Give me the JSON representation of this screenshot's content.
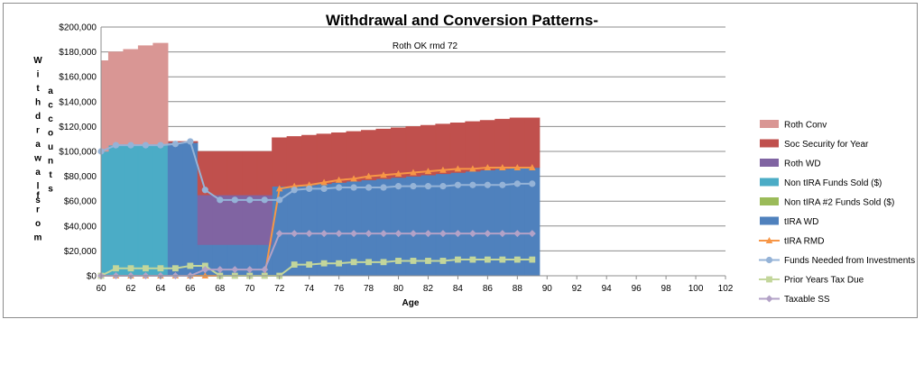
{
  "chart_data": {
    "type": "area",
    "title": "Withdrawal and Conversion Patterns-",
    "subtitle": "Roth OK rmd 72",
    "xlabel": "Age",
    "ylabel": "Withdrawals from accounts ($)",
    "ylim": [
      0,
      200000
    ],
    "xlim": [
      60,
      102
    ],
    "yticks": [
      0,
      20000,
      40000,
      60000,
      80000,
      100000,
      120000,
      140000,
      160000,
      180000,
      200000
    ],
    "ytick_labels": [
      "$0",
      "$20,000",
      "$40,000",
      "$60,000",
      "$80,000",
      "$100,000",
      "$120,000",
      "$140,000",
      "$160,000",
      "$180,000",
      "$200,000"
    ],
    "xticks": [
      60,
      62,
      64,
      66,
      68,
      70,
      72,
      74,
      76,
      78,
      80,
      82,
      84,
      86,
      88,
      90,
      92,
      94,
      96,
      98,
      100,
      102
    ],
    "grid": "horizontal",
    "legend_position": "right",
    "ages": [
      60,
      61,
      62,
      63,
      64,
      65,
      66,
      67,
      68,
      69,
      70,
      71,
      72,
      73,
      74,
      75,
      76,
      77,
      78,
      79,
      80,
      81,
      82,
      83,
      84,
      85,
      86,
      87,
      88,
      89
    ],
    "stacked_series": [
      {
        "name": "Non tIRA Funds Sold ($)",
        "color": "#4bacc6",
        "values": [
          100000,
          105000,
          105000,
          105000,
          105000,
          0,
          0,
          0,
          0,
          0,
          0,
          0,
          0,
          0,
          0,
          0,
          0,
          0,
          0,
          0,
          0,
          0,
          0,
          0,
          0,
          0,
          0,
          0,
          0,
          0
        ]
      },
      {
        "name": "tIRA WD",
        "color": "#4f81bd",
        "values": [
          0,
          0,
          0,
          0,
          0,
          107000,
          107000,
          25000,
          25000,
          25000,
          25000,
          25000,
          72000,
          72000,
          73000,
          74000,
          75000,
          76000,
          77000,
          78000,
          79000,
          80000,
          81000,
          82000,
          83000,
          84000,
          85000,
          86000,
          87000,
          87000
        ]
      },
      {
        "name": "Roth WD",
        "color": "#8064a2",
        "values": [
          0,
          0,
          0,
          0,
          0,
          0,
          0,
          40000,
          40000,
          40000,
          40000,
          40000,
          0,
          0,
          0,
          0,
          0,
          0,
          0,
          0,
          0,
          0,
          0,
          0,
          0,
          0,
          0,
          0,
          0,
          0
        ]
      },
      {
        "name": "Non tIRA #2 Funds Sold ($)",
        "color": "#9bbb59",
        "values": [
          0,
          0,
          0,
          0,
          0,
          0,
          0,
          0,
          0,
          0,
          0,
          0,
          0,
          0,
          0,
          0,
          0,
          0,
          0,
          0,
          0,
          0,
          0,
          0,
          0,
          0,
          0,
          0,
          0,
          0
        ]
      },
      {
        "name": "Soc Security for Year",
        "color": "#c0504d",
        "values": [
          0,
          0,
          0,
          0,
          0,
          1000,
          1000,
          35000,
          35000,
          35000,
          35000,
          35000,
          39000,
          40000,
          40000,
          40000,
          40000,
          40000,
          40000,
          40000,
          40000,
          40000,
          40000,
          40000,
          40000,
          40000,
          40000,
          40000,
          40000,
          40000
        ]
      },
      {
        "name": "Roth Conv",
        "color": "#d99694",
        "values": [
          73000,
          75000,
          77000,
          80000,
          82000,
          0,
          0,
          0,
          0,
          0,
          0,
          0,
          0,
          0,
          0,
          0,
          0,
          0,
          0,
          0,
          0,
          0,
          0,
          0,
          0,
          0,
          0,
          0,
          0,
          0
        ]
      }
    ],
    "line_series": [
      {
        "name": "tIRA RMD",
        "color": "#f79646",
        "marker": "triangle",
        "values": [
          0,
          0,
          0,
          0,
          0,
          0,
          0,
          0,
          0,
          0,
          0,
          0,
          70000,
          72000,
          73000,
          75000,
          77000,
          78000,
          80000,
          81000,
          82000,
          83000,
          84000,
          85000,
          86000,
          86000,
          87000,
          87000,
          87000,
          87000
        ]
      },
      {
        "name": "Funds Needed from Investments",
        "color": "#95b3d7",
        "marker": "circle",
        "values": [
          100000,
          105000,
          105000,
          105000,
          105000,
          106000,
          108000,
          69000,
          61000,
          61000,
          61000,
          61000,
          61000,
          69000,
          70000,
          70000,
          71000,
          71000,
          71000,
          71000,
          72000,
          72000,
          72000,
          72000,
          73000,
          73000,
          73000,
          73000,
          74000,
          74000
        ]
      },
      {
        "name": "Prior Years Tax Due",
        "color": "#c3d69b",
        "marker": "square",
        "values": [
          0,
          6000,
          6000,
          6000,
          6000,
          6000,
          8000,
          8000,
          0,
          0,
          0,
          0,
          0,
          9000,
          9000,
          10000,
          10000,
          11000,
          11000,
          11000,
          12000,
          12000,
          12000,
          12000,
          13000,
          13000,
          13000,
          13000,
          13000,
          13000
        ]
      },
      {
        "name": "Taxable SS",
        "color": "#b3a2c7",
        "marker": "diamond",
        "values": [
          0,
          0,
          0,
          0,
          0,
          0,
          0,
          5000,
          5000,
          5000,
          5000,
          5000,
          34000,
          34000,
          34000,
          34000,
          34000,
          34000,
          34000,
          34000,
          34000,
          34000,
          34000,
          34000,
          34000,
          34000,
          34000,
          34000,
          34000,
          34000
        ]
      }
    ],
    "legend_order": [
      "Roth Conv",
      "Soc Security for Year",
      "Roth WD",
      "Non tIRA Funds Sold ($)",
      "Non tIRA #2 Funds Sold ($)",
      "tIRA WD",
      "tIRA RMD",
      "Funds Needed from Investments",
      "Prior Years Tax Due",
      "Taxable SS"
    ]
  }
}
